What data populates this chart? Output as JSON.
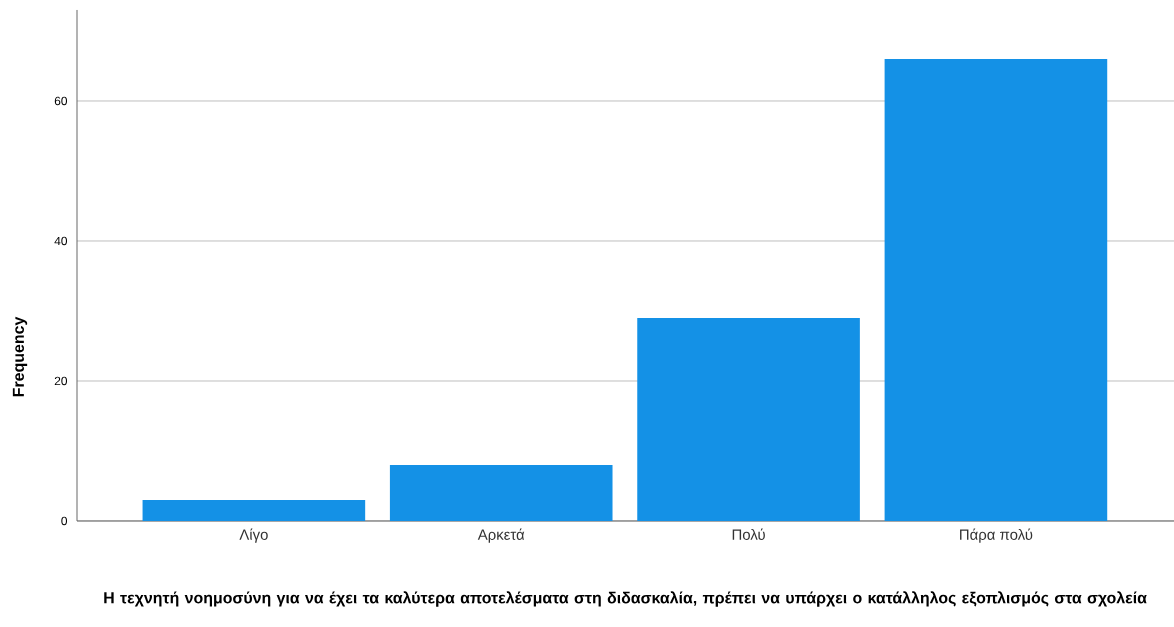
{
  "chart_data": {
    "type": "bar",
    "xlabel": "Η τεχνητή νοημοσύνη για να έχει τα καλύτερα αποτελέσματα στη διδασκαλία, πρέπει να υπάρχει ο κατάλληλος εξοπλισμός στα σχολεία",
    "ylabel": "Frequency",
    "categories": [
      "Λίγο",
      "Αρκετά",
      "Πολύ",
      "Πάρα πολύ"
    ],
    "values": [
      3,
      8,
      29,
      66
    ],
    "color": "#1491e6",
    "ylim": [
      0,
      73
    ],
    "yticks": [
      0,
      20,
      40,
      60
    ],
    "grid": "y"
  }
}
